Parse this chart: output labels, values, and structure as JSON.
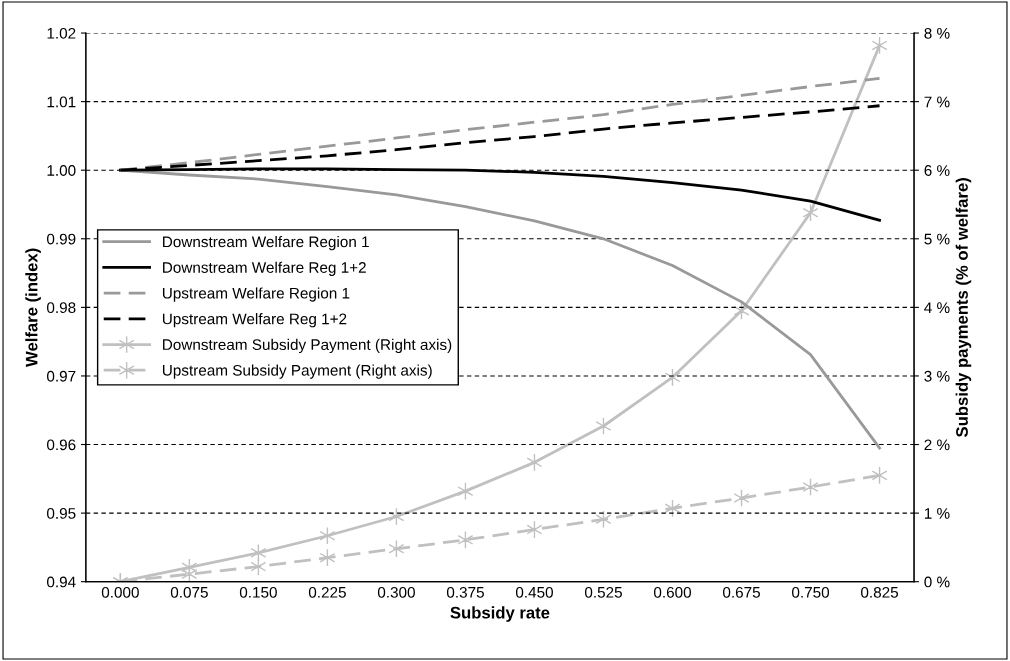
{
  "chart_data": {
    "type": "line",
    "xlabel": "Subsidy rate",
    "ylabel": "Welfare (index)",
    "y2label": "Subsidy payments (% of welfare)",
    "categories": [
      "0.000",
      "0.075",
      "0.150",
      "0.225",
      "0.300",
      "0.375",
      "0.450",
      "0.525",
      "0.600",
      "0.675",
      "0.750",
      "0.825"
    ],
    "series": [
      {
        "name": "Downstream Welfare Region 1",
        "color": "#999999",
        "line_style": "solid",
        "marker": "none",
        "values": [
          1.0,
          0.9993,
          0.9987,
          0.9976,
          0.9964,
          0.9947,
          0.9926,
          0.99,
          0.9861,
          0.9808,
          0.9731,
          0.9595
        ]
      },
      {
        "name": "Downstream Welfare Reg 1+2",
        "color": "#000000",
        "line_style": "solid",
        "marker": "none",
        "values": [
          1.0,
          1.0001,
          1.0002,
          1.0002,
          1.0001,
          1.0,
          0.9997,
          0.9991,
          0.9982,
          0.9971,
          0.9955,
          0.9927
        ]
      },
      {
        "name": "Upstream Welfare Region 1",
        "color": "#999999",
        "line_style": "dashed",
        "marker": "none",
        "values": [
          1.0,
          1.0011,
          1.0023,
          1.0035,
          1.0047,
          1.0059,
          1.007,
          1.0081,
          1.0096,
          1.0109,
          1.0122,
          1.0134
        ]
      },
      {
        "name": "Upstream Welfare Reg 1+2",
        "color": "#000000",
        "line_style": "dashed",
        "marker": "none",
        "values": [
          1.0,
          1.0007,
          1.0014,
          1.0021,
          1.003,
          1.004,
          1.0049,
          1.006,
          1.0069,
          1.0077,
          1.0085,
          1.0094
        ]
      },
      {
        "name": "Downstream Subsidy Payment (Right axis)",
        "color": "#c0c0c0",
        "line_style": "solid",
        "marker": "cross",
        "axis": "y2",
        "values": [
          0,
          0.21,
          0.42,
          0.67,
          0.95,
          1.32,
          1.74,
          2.27,
          2.98,
          3.95,
          5.38,
          7.82
        ]
      },
      {
        "name": "Upstream Subsidy Payment (Right axis)",
        "color": "#c0c0c0",
        "line_style": "dashed",
        "marker": "cross",
        "axis": "y2",
        "values": [
          0,
          0.11,
          0.22,
          0.35,
          0.48,
          0.61,
          0.76,
          0.91,
          1.07,
          1.22,
          1.38,
          1.55
        ]
      }
    ],
    "ylim": [
      0.94,
      1.02
    ],
    "yticks": [
      {
        "value": 0.94,
        "label": "0.94"
      },
      {
        "value": 0.95,
        "label": "0.95"
      },
      {
        "value": 0.96,
        "label": "0.96"
      },
      {
        "value": 0.97,
        "label": "0.97"
      },
      {
        "value": 0.98,
        "label": "0.98"
      },
      {
        "value": 0.99,
        "label": "0.99"
      },
      {
        "value": 1.0,
        "label": "1.00"
      },
      {
        "value": 1.01,
        "label": "1.01"
      },
      {
        "value": 1.02,
        "label": "1.02"
      }
    ],
    "y2lim": [
      0,
      8
    ],
    "y2ticks": [
      {
        "value": 0,
        "label": "0 %"
      },
      {
        "value": 1,
        "label": "1 %"
      },
      {
        "value": 2,
        "label": "2 %"
      },
      {
        "value": 3,
        "label": "3 %"
      },
      {
        "value": 4,
        "label": "4 %"
      },
      {
        "value": 5,
        "label": "5 %"
      },
      {
        "value": 6,
        "label": "6 %"
      },
      {
        "value": 7,
        "label": "7 %"
      },
      {
        "value": 8,
        "label": "8 %"
      }
    ],
    "grid": "y",
    "legend": "left"
  }
}
